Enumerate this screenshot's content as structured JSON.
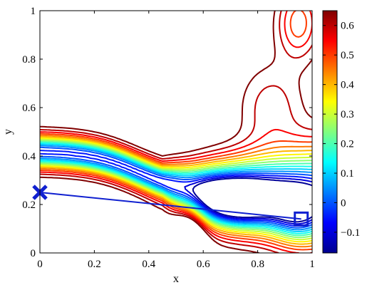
{
  "chart_data": {
    "type": "contour",
    "xlabel": "x",
    "ylabel": "y",
    "xlim": [
      0,
      1
    ],
    "ylim": [
      0,
      1
    ],
    "x_ticks": [
      0,
      0.2,
      0.4,
      0.6,
      0.8,
      1
    ],
    "x_tick_labels": [
      "0",
      "0.2",
      "0.4",
      "0.6",
      "0.8",
      "1"
    ],
    "y_ticks": [
      0,
      0.2,
      0.4,
      0.6,
      0.8,
      1
    ],
    "y_tick_labels": [
      "0",
      "0.2",
      "0.4",
      "0.6",
      "0.8",
      "1"
    ],
    "colorbar": {
      "colormap": "jet",
      "range": [
        -0.17,
        0.65
      ],
      "ticks": [
        -0.1,
        0,
        0.1,
        0.2,
        0.3,
        0.4,
        0.5,
        0.6
      ],
      "tick_labels": [
        "−0.1",
        "0",
        "0.1",
        "0.2",
        "0.3",
        "0.4",
        "0.5",
        "0.6"
      ]
    },
    "contour_levels": [
      -0.15,
      -0.1,
      -0.05,
      0.0,
      0.05,
      0.1,
      0.15,
      0.2,
      0.25,
      0.3,
      0.35,
      0.4,
      0.45,
      0.5,
      0.55,
      0.6,
      0.65
    ],
    "path": {
      "color": "#1020d0",
      "points": [
        [
          0.0,
          0.25
        ],
        [
          0.96,
          0.14
        ]
      ]
    },
    "markers": [
      {
        "type": "x-mark",
        "x": 0.0,
        "y": 0.25,
        "color": "#1020d0"
      },
      {
        "type": "square",
        "x": 0.96,
        "y": 0.14,
        "color": "#1020d0"
      }
    ]
  }
}
